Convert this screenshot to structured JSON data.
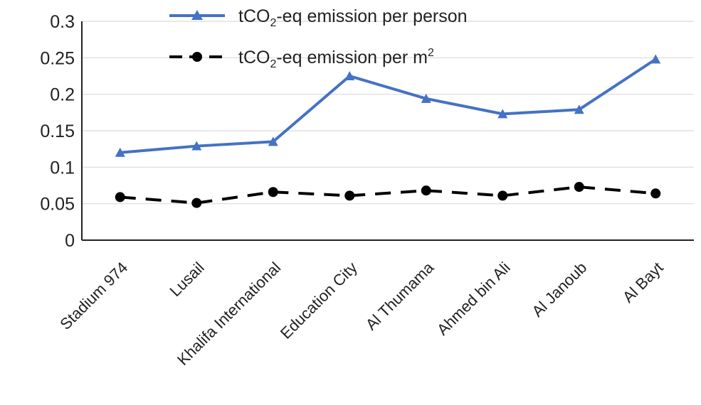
{
  "chart_data": {
    "type": "line",
    "title": "",
    "xlabel": "",
    "ylabel": "",
    "ylim": [
      0,
      0.3
    ],
    "yticks": [
      "0",
      "0.05",
      "0.1",
      "0.15",
      "0.2",
      "0.25",
      "0.3"
    ],
    "grid": "horizontal",
    "legend_position": "top",
    "categories": [
      "Stadium 974",
      "Lusail",
      "Khalifa International",
      "Education City",
      "Al Thumama",
      "Ahmed bin Ali",
      "Al Janoub",
      "Al Bayt"
    ],
    "series": [
      {
        "name": "tCO₂-eq emission per person",
        "name_parts": [
          "tCO",
          "2",
          "-eq emission per person"
        ],
        "color": "#4472c4",
        "marker": "triangle",
        "dash": "solid",
        "values": [
          0.12,
          0.129,
          0.135,
          0.225,
          0.194,
          0.173,
          0.179,
          0.248
        ]
      },
      {
        "name": "tCO₂-eq emission per m²",
        "name_parts": [
          "tCO",
          "2",
          "-eq emission per m",
          "2"
        ],
        "color": "#000000",
        "marker": "circle",
        "dash": "dashed",
        "values": [
          0.059,
          0.051,
          0.066,
          0.061,
          0.068,
          0.061,
          0.073,
          0.064
        ]
      }
    ]
  }
}
